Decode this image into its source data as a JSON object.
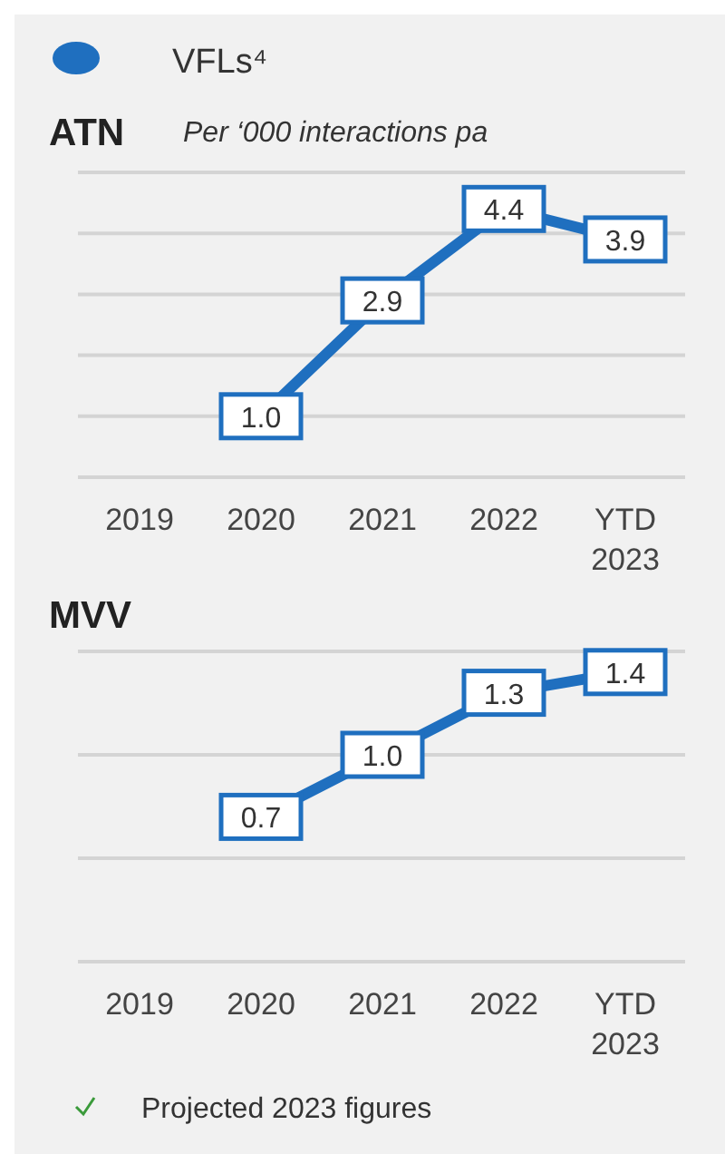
{
  "chart_data": [
    {
      "type": "line",
      "title": "ATN",
      "subtitle": "Per ‘000 interactions pa",
      "categories": [
        "2019",
        "2020",
        "2021",
        "2022",
        "YTD 2023"
      ],
      "series": [
        {
          "name": "VFLs⁴",
          "color": "#1f6fbf",
          "values": [
            null,
            1.0,
            2.9,
            4.4,
            3.9
          ],
          "value_labels": [
            null,
            "1.0",
            "2.9",
            "4.4",
            "3.9"
          ]
        }
      ],
      "ylim": [
        0,
        5
      ],
      "yticks": [
        {
          "value": 0,
          "label": null
        },
        {
          "value": 1,
          "label": null
        },
        {
          "value": 2,
          "label": null
        },
        {
          "value": 3,
          "label": null
        },
        {
          "value": 4,
          "label": null
        },
        {
          "value": 5,
          "label": null
        }
      ],
      "grid": "y",
      "tick_labels": "x",
      "legend": "top left",
      "marker": "square",
      "line_style": "solid"
    },
    {
      "type": "line",
      "title": "MVV",
      "categories": [
        "2019",
        "2020",
        "2021",
        "2022",
        "YTD 2023"
      ],
      "series": [
        {
          "color": "#1f6fbf",
          "values": [
            null,
            0.7,
            1.0,
            1.3,
            1.4
          ],
          "value_labels": [
            null,
            "0.7",
            "1.0",
            "1.3",
            "1.4"
          ]
        }
      ],
      "ylim": [
        0,
        1.5
      ],
      "yticks": [
        {
          "value": 0,
          "label": null
        },
        {
          "value": 0.5,
          "label": null
        },
        {
          "value": 1,
          "label": null
        },
        {
          "value": 1.5,
          "label": null
        }
      ],
      "grid": "y",
      "tick_labels": "x",
      "marker": "square",
      "line_style": "solid",
      "annotations": [
        "Projected 2023 figures"
      ]
    }
  ]
}
